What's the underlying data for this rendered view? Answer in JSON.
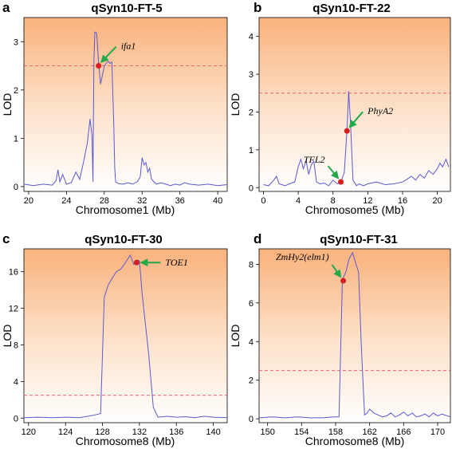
{
  "colors": {
    "line": "#5a5acf",
    "threshold": "#e8646e",
    "marker": "#d42020",
    "arrow": "#23a84a",
    "gradient_top": "#f9b27c",
    "gradient_bottom": "#ffffff"
  },
  "chart_data": [
    {
      "id": "a",
      "type": "line",
      "panel_label": "a",
      "title": "qSyn10-FT-5",
      "xlabel": "Chromosome1 (Mb)",
      "ylabel": "LOD",
      "xlim": [
        19.5,
        41
      ],
      "ylim": [
        -0.1,
        3.5
      ],
      "xticks": [
        20,
        24,
        28,
        32,
        36,
        40
      ],
      "yticks": [
        0,
        1,
        2,
        3
      ],
      "threshold": 2.5,
      "x": [
        19.5,
        20.5,
        21.5,
        22.5,
        22.9,
        23.1,
        23.3,
        23.6,
        24,
        24.5,
        25,
        25.4,
        25.8,
        26.2,
        26.5,
        26.7,
        26.8,
        26.9,
        27.0,
        27.2,
        27.4,
        27.6,
        27.8,
        28.0,
        28.2,
        28.4,
        28.6,
        28.8,
        29.0,
        29.1,
        29.2,
        29.5,
        30,
        30.5,
        31,
        31.5,
        31.8,
        32,
        32.2,
        32.4,
        32.6,
        32.8,
        33,
        33.5,
        34,
        34.5,
        35,
        35.5,
        36,
        36.5,
        37,
        38,
        39,
        40,
        41
      ],
      "y": [
        0.05,
        0.02,
        0.05,
        0.03,
        0.12,
        0.35,
        0.1,
        0.25,
        0.05,
        0.08,
        0.3,
        0.15,
        0.5,
        0.9,
        1.4,
        1.05,
        0.1,
        2.6,
        3.2,
        3.18,
        2.55,
        2.12,
        2.3,
        2.5,
        2.55,
        2.6,
        2.55,
        2.58,
        1.3,
        0.4,
        0.1,
        0.06,
        0.05,
        0.08,
        0.05,
        0.1,
        0.2,
        0.6,
        0.45,
        0.5,
        0.3,
        0.38,
        0.15,
        0.05,
        0.08,
        0.05,
        0.02,
        0.05,
        0.03,
        0.08,
        0.05,
        0.03,
        0.05,
        0.02,
        0.04
      ],
      "markers": [
        {
          "x": 27.4,
          "y": 2.5,
          "label": "ifa1",
          "label_side": "right"
        }
      ]
    },
    {
      "id": "b",
      "type": "line",
      "panel_label": "b",
      "title": "qSyn10-FT-22",
      "xlabel": "Chromosome5 (Mb)",
      "ylabel": "LOD",
      "xlim": [
        -0.5,
        21.5
      ],
      "ylim": [
        -0.1,
        4.5
      ],
      "xticks": [
        0,
        4,
        8,
        12,
        16,
        20
      ],
      "yticks": [
        0,
        1,
        2,
        3,
        4
      ],
      "threshold": 2.5,
      "x": [
        0,
        0.6,
        1.2,
        1.5,
        1.8,
        2.5,
        3,
        3.6,
        4,
        4.3,
        4.6,
        4.9,
        5.2,
        5.5,
        5.8,
        6.1,
        6.5,
        7,
        7.5,
        8,
        8.5,
        8.9,
        9.3,
        9.6,
        9.8,
        10,
        10.3,
        10.7,
        11,
        11.5,
        12,
        13,
        14,
        15,
        16,
        16.5,
        17,
        17.5,
        18,
        18.5,
        19,
        19.5,
        20,
        20.3,
        20.6,
        21,
        21.3
      ],
      "y": [
        0.08,
        0.05,
        0.2,
        0.3,
        0.1,
        0.05,
        0.1,
        0.15,
        0.55,
        0.75,
        0.5,
        0.72,
        0.35,
        0.6,
        0.7,
        0.15,
        0.1,
        0.12,
        0.05,
        0.2,
        0.1,
        0.15,
        0.4,
        1.5,
        2.55,
        1.8,
        0.2,
        0.05,
        0.1,
        0.05,
        0.1,
        0.15,
        0.08,
        0.1,
        0.15,
        0.22,
        0.3,
        0.2,
        0.35,
        0.25,
        0.45,
        0.35,
        0.5,
        0.65,
        0.55,
        0.75,
        0.55
      ],
      "markers": [
        {
          "x": 9.6,
          "y": 1.5,
          "label": "PhyA2",
          "label_side": "right"
        },
        {
          "x": 8.9,
          "y": 0.15,
          "label": "TFL2",
          "label_side": "left"
        }
      ]
    },
    {
      "id": "c",
      "type": "line",
      "panel_label": "c",
      "title": "qSyn10-FT-30",
      "xlabel": "Chromosome8 (Mb)",
      "ylabel": "LOD",
      "xlim": [
        119.5,
        141.5
      ],
      "ylim": [
        -0.5,
        18.5
      ],
      "xticks": [
        120,
        124,
        128,
        132,
        136,
        140
      ],
      "yticks": [
        0,
        4,
        8,
        12,
        16
      ],
      "threshold": 2.5,
      "x": [
        119.5,
        121,
        122.5,
        124,
        125.5,
        127,
        127.8,
        128.2,
        128.6,
        129,
        129.5,
        130,
        130.5,
        131,
        131.4,
        131.7,
        132,
        132.3,
        133,
        133.5,
        134,
        135,
        136,
        137,
        138,
        139,
        140,
        141.5
      ],
      "y": [
        0.05,
        0.1,
        0.05,
        0.1,
        0.05,
        0.3,
        0.5,
        13.2,
        14.5,
        15.2,
        16,
        16.3,
        17,
        17.8,
        16.8,
        17.3,
        17.2,
        13.5,
        7,
        1.2,
        0.1,
        0.2,
        0.1,
        0.15,
        0.05,
        0.2,
        0.1,
        0.05
      ],
      "markers": [
        {
          "x": 131.7,
          "y": 17.0,
          "label": "TOE1",
          "label_side": "right"
        }
      ]
    },
    {
      "id": "d",
      "type": "line",
      "panel_label": "d",
      "title": "qSyn10-FT-31",
      "xlabel": "Chromosome8 (Mb)",
      "ylabel": "LOD",
      "xlim": [
        149,
        171.5
      ],
      "ylim": [
        -0.2,
        8.8
      ],
      "xticks": [
        150,
        154,
        158,
        162,
        166,
        170
      ],
      "yticks": [
        0,
        2,
        4,
        6,
        8
      ],
      "threshold": 2.5,
      "x": [
        149,
        150.5,
        152,
        153.5,
        155,
        156.5,
        157.8,
        158.4,
        158.8,
        159.2,
        159.6,
        160,
        160.4,
        160.7,
        161,
        161.4,
        161.7,
        162,
        162.5,
        163,
        163.5,
        164,
        164.5,
        165,
        165.5,
        166,
        166.5,
        167,
        167.5,
        168,
        168.5,
        169,
        169.5,
        170,
        170.5,
        171.5
      ],
      "y": [
        0.05,
        0.1,
        0.05,
        0.1,
        0.05,
        0.05,
        0.1,
        0.1,
        7.2,
        7.6,
        8.3,
        8.6,
        8.0,
        7.6,
        4.0,
        0.2,
        0.3,
        0.5,
        0.3,
        0.2,
        0.1,
        0.15,
        0.3,
        0.1,
        0.2,
        0.35,
        0.15,
        0.3,
        0.1,
        0.15,
        0.25,
        0.1,
        0.3,
        0.15,
        0.25,
        0.1
      ],
      "markers": [
        {
          "x": 158.9,
          "y": 7.15,
          "label": "ZmHy2(elm1)",
          "label_side": "left"
        }
      ]
    }
  ]
}
